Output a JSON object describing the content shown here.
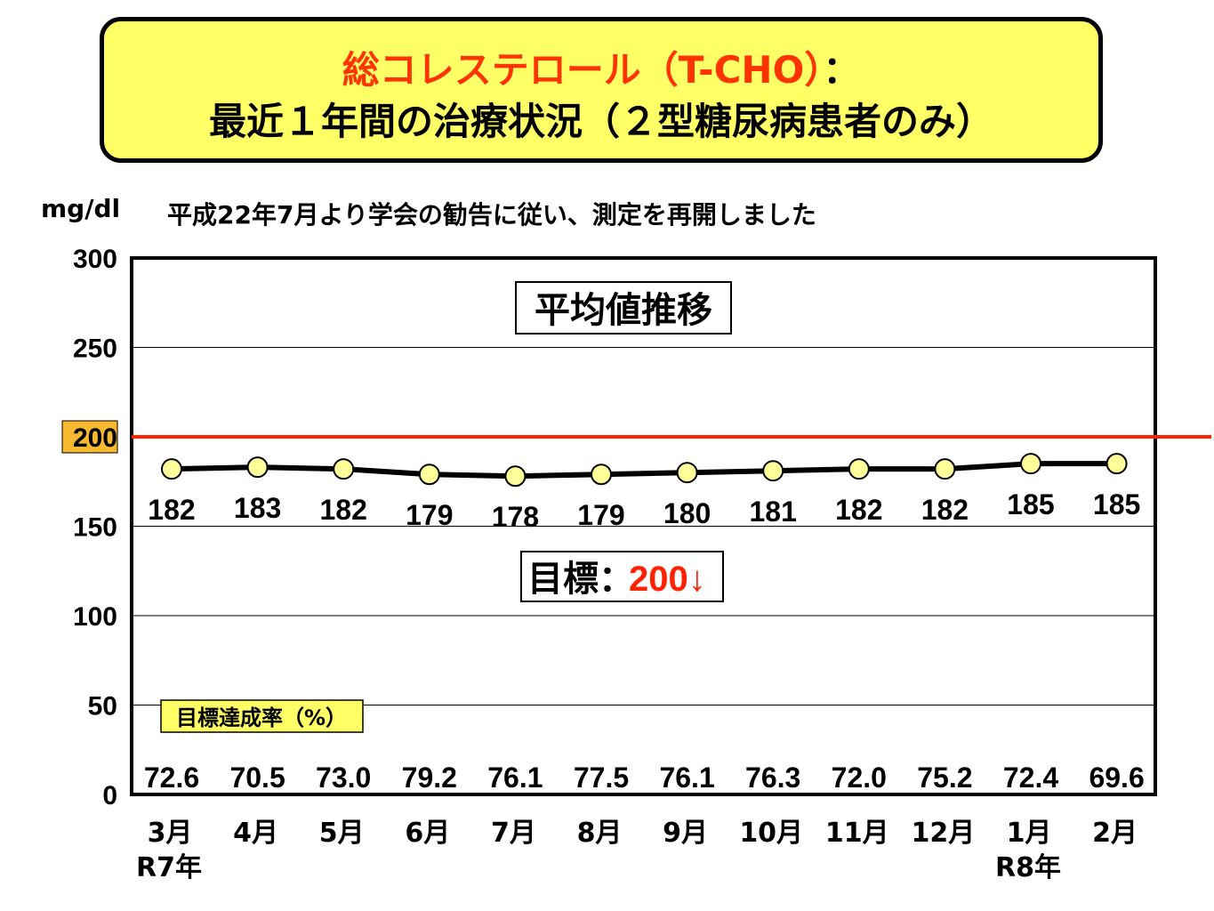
{
  "title": {
    "line1_red": "総コレステロール（T-CHO）",
    "line1_rest": "：",
    "line2": "最近１年間の治療状況（２型糖尿病患者のみ）"
  },
  "unit_label": "mg/dl",
  "note": "平成22年7月より学会の勧告に従い、測定を再開しました",
  "chart_data": {
    "type": "line",
    "title": "平均値推移",
    "categories": [
      "3月",
      "4月",
      "5月",
      "6月",
      "7月",
      "8月",
      "9月",
      "10月",
      "11月",
      "12月",
      "1月",
      "2月"
    ],
    "year_labels": [
      "R7年",
      "",
      "",
      "",
      "",
      "",
      "",
      "",
      "",
      "",
      "R8年",
      ""
    ],
    "series": [
      {
        "values": [
          182,
          183,
          182,
          179,
          178,
          179,
          180,
          181,
          182,
          182,
          185,
          185
        ]
      }
    ],
    "yticks": [
      0,
      50,
      100,
      150,
      200,
      250,
      300
    ],
    "ylim": [
      0,
      300
    ],
    "reference_line": {
      "value": 200,
      "color": "#ff2200"
    },
    "target_label": "目標",
    "target_value": "200↓",
    "achievement_label": "目標達成率（%）",
    "achievement_rates": [
      "72.6",
      "70.5",
      "73.0",
      "79.2",
      "76.1",
      "77.5",
      "76.1",
      "76.3",
      "72.0",
      "75.2",
      "72.4",
      "69.6"
    ],
    "grid": true
  },
  "colors": {
    "title_bg": "#ffff66",
    "title_red": "#ff3300",
    "marker_fill": "#ffff99",
    "highlight_tick_bg": "#f5b82e",
    "achievement_label_bg": "#ffff66",
    "target_value": "#ff2200"
  }
}
